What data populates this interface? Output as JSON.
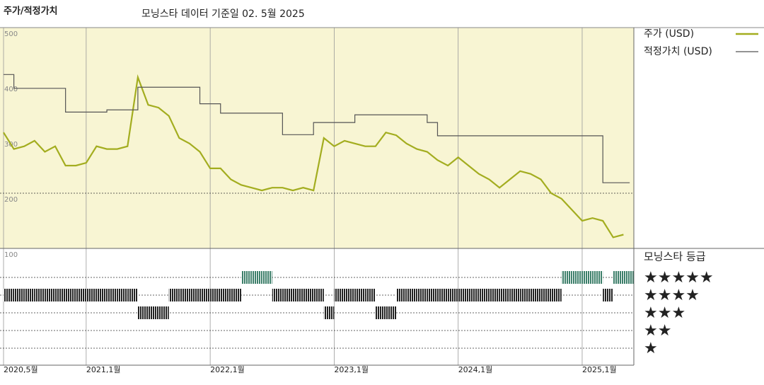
{
  "chart_data": {
    "type": "line",
    "title": "주가/적정가치",
    "subtitle": "모닝스타 데이터 기준일 02. 5월 2025",
    "x": [
      "2020-05",
      "2020-06",
      "2020-07",
      "2020-08",
      "2020-09",
      "2020-10",
      "2020-11",
      "2020-12",
      "2021-01",
      "2021-02",
      "2021-03",
      "2021-04",
      "2021-05",
      "2021-06",
      "2021-07",
      "2021-08",
      "2021-09",
      "2021-10",
      "2021-11",
      "2021-12",
      "2022-01",
      "2022-02",
      "2022-03",
      "2022-04",
      "2022-05",
      "2022-06",
      "2022-07",
      "2022-08",
      "2022-09",
      "2022-10",
      "2022-11",
      "2022-12",
      "2023-01",
      "2023-02",
      "2023-03",
      "2023-04",
      "2023-05",
      "2023-06",
      "2023-07",
      "2023-08",
      "2023-09",
      "2023-10",
      "2023-11",
      "2023-12",
      "2024-01",
      "2024-02",
      "2024-03",
      "2024-04",
      "2024-05",
      "2024-06",
      "2024-07",
      "2024-08",
      "2024-09",
      "2024-10",
      "2024-11",
      "2024-12",
      "2025-01",
      "2025-02",
      "2025-03",
      "2025-04",
      "2025-05"
    ],
    "series": [
      {
        "name": "주가 (USD)",
        "color": "#a3ad1f",
        "style": "line",
        "values": [
          310,
          280,
          285,
          295,
          275,
          285,
          250,
          250,
          255,
          285,
          280,
          280,
          285,
          410,
          360,
          355,
          340,
          300,
          290,
          275,
          245,
          245,
          225,
          215,
          210,
          205,
          210,
          210,
          205,
          210,
          205,
          300,
          285,
          295,
          290,
          285,
          285,
          310,
          305,
          290,
          280,
          275,
          260,
          250,
          265,
          250,
          235,
          225,
          210,
          225,
          240,
          235,
          225,
          200,
          190,
          170,
          150,
          155,
          150,
          120,
          125
        ]
      },
      {
        "name": "적정가치 (USD)",
        "color": "#555555",
        "style": "step",
        "values": [
          415,
          390,
          390,
          390,
          390,
          390,
          347,
          347,
          347,
          347,
          351,
          351,
          351,
          392,
          392,
          392,
          392,
          392,
          392,
          362,
          362,
          345,
          345,
          345,
          345,
          345,
          345,
          306,
          306,
          306,
          328,
          328,
          328,
          328,
          342,
          342,
          342,
          342,
          342,
          342,
          342,
          328,
          304,
          304,
          304,
          304,
          304,
          304,
          304,
          304,
          304,
          304,
          304,
          304,
          304,
          304,
          304,
          304,
          219,
          219,
          219
        ]
      }
    ],
    "ratings": [
      4,
      4,
      4,
      4,
      4,
      4,
      4,
      4,
      4,
      4,
      4,
      4,
      4,
      3,
      3,
      3,
      4,
      4,
      4,
      4,
      4,
      4,
      4,
      5,
      5,
      5,
      4,
      4,
      4,
      4,
      4,
      3,
      4,
      4,
      4,
      4,
      3,
      3,
      4,
      4,
      4,
      4,
      4,
      4,
      4,
      4,
      4,
      4,
      4,
      4,
      4,
      4,
      4,
      4,
      5,
      5,
      5,
      5,
      4,
      5,
      5
    ],
    "rating_title": "모닝스타 등급",
    "rating_labels": [
      {
        "value": 5,
        "label": "★★★★★"
      },
      {
        "value": 4,
        "label": "★★★★"
      },
      {
        "value": 3,
        "label": "★★★"
      },
      {
        "value": 2,
        "label": "★★"
      },
      {
        "value": 1,
        "label": "★"
      }
    ],
    "rating_color": {
      "5": "#3d7f6a",
      "4": "#222222",
      "3": "#222222",
      "2": "#222222",
      "1": "#222222"
    },
    "xlim": [
      "2020-05",
      "2025-06"
    ],
    "xticks": [
      {
        "value": "2020-05",
        "label": "2020,5월"
      },
      {
        "value": "2021-01",
        "label": "2021,1월"
      },
      {
        "value": "2022-01",
        "label": "2022,1월"
      },
      {
        "value": "2023-01",
        "label": "2023,1월"
      },
      {
        "value": "2024-01",
        "label": "2024,1월"
      },
      {
        "value": "2025-01",
        "label": "2025,1월"
      }
    ],
    "ylim": [
      100,
      500
    ],
    "yticks": [
      100,
      200,
      300,
      400,
      500
    ],
    "ygrid_lines": [
      200
    ],
    "background": "#f8f5d3"
  }
}
